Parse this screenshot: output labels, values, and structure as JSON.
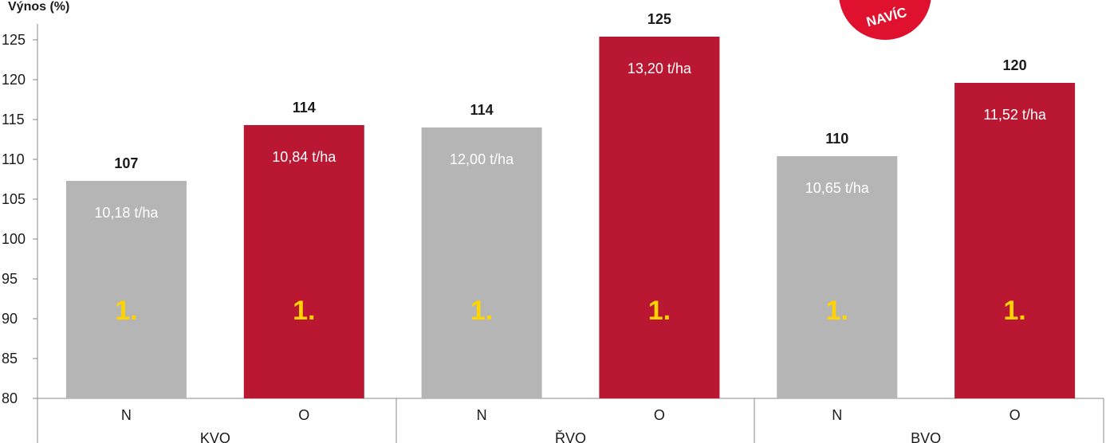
{
  "chart_data": {
    "type": "bar",
    "ylabel": "Výnos (%)",
    "ylim": [
      80,
      125
    ],
    "yticks": [
      80,
      85,
      90,
      95,
      100,
      105,
      110,
      115,
      120,
      125
    ],
    "grid": false,
    "groups": [
      "KVO",
      "ŘVO",
      "BVO"
    ],
    "bars": [
      {
        "group": "KVO",
        "category": "N",
        "value": 107.3,
        "value_label": "107",
        "inner_label": "10,18 t/ha",
        "rank": "1.",
        "color": "#b5b5b5"
      },
      {
        "group": "KVO",
        "category": "O",
        "value": 114.3,
        "value_label": "114",
        "inner_label": "10,84 t/ha",
        "rank": "1.",
        "color": "#ba1733"
      },
      {
        "group": "ŘVO",
        "category": "N",
        "value": 114.0,
        "value_label": "114",
        "inner_label": "12,00 t/ha",
        "rank": "1.",
        "color": "#b5b5b5"
      },
      {
        "group": "ŘVO",
        "category": "O",
        "value": 125.4,
        "value_label": "125",
        "inner_label": "13,20 t/ha",
        "rank": "1.",
        "color": "#ba1733"
      },
      {
        "group": "BVO",
        "category": "N",
        "value": 110.4,
        "value_label": "110",
        "inner_label": "10,65 t/ha",
        "rank": "1.",
        "color": "#b5b5b5"
      },
      {
        "group": "BVO",
        "category": "O",
        "value": 119.6,
        "value_label": "120",
        "inner_label": "11,52 t/ha",
        "rank": "1.",
        "color": "#ba1733"
      }
    ],
    "colors": {
      "N": "#b5b5b5",
      "O": "#ba1733",
      "rank_text": "#ffd400",
      "badge": "#e0102f"
    }
  },
  "badge": {
    "label": "NAVÍC"
  }
}
